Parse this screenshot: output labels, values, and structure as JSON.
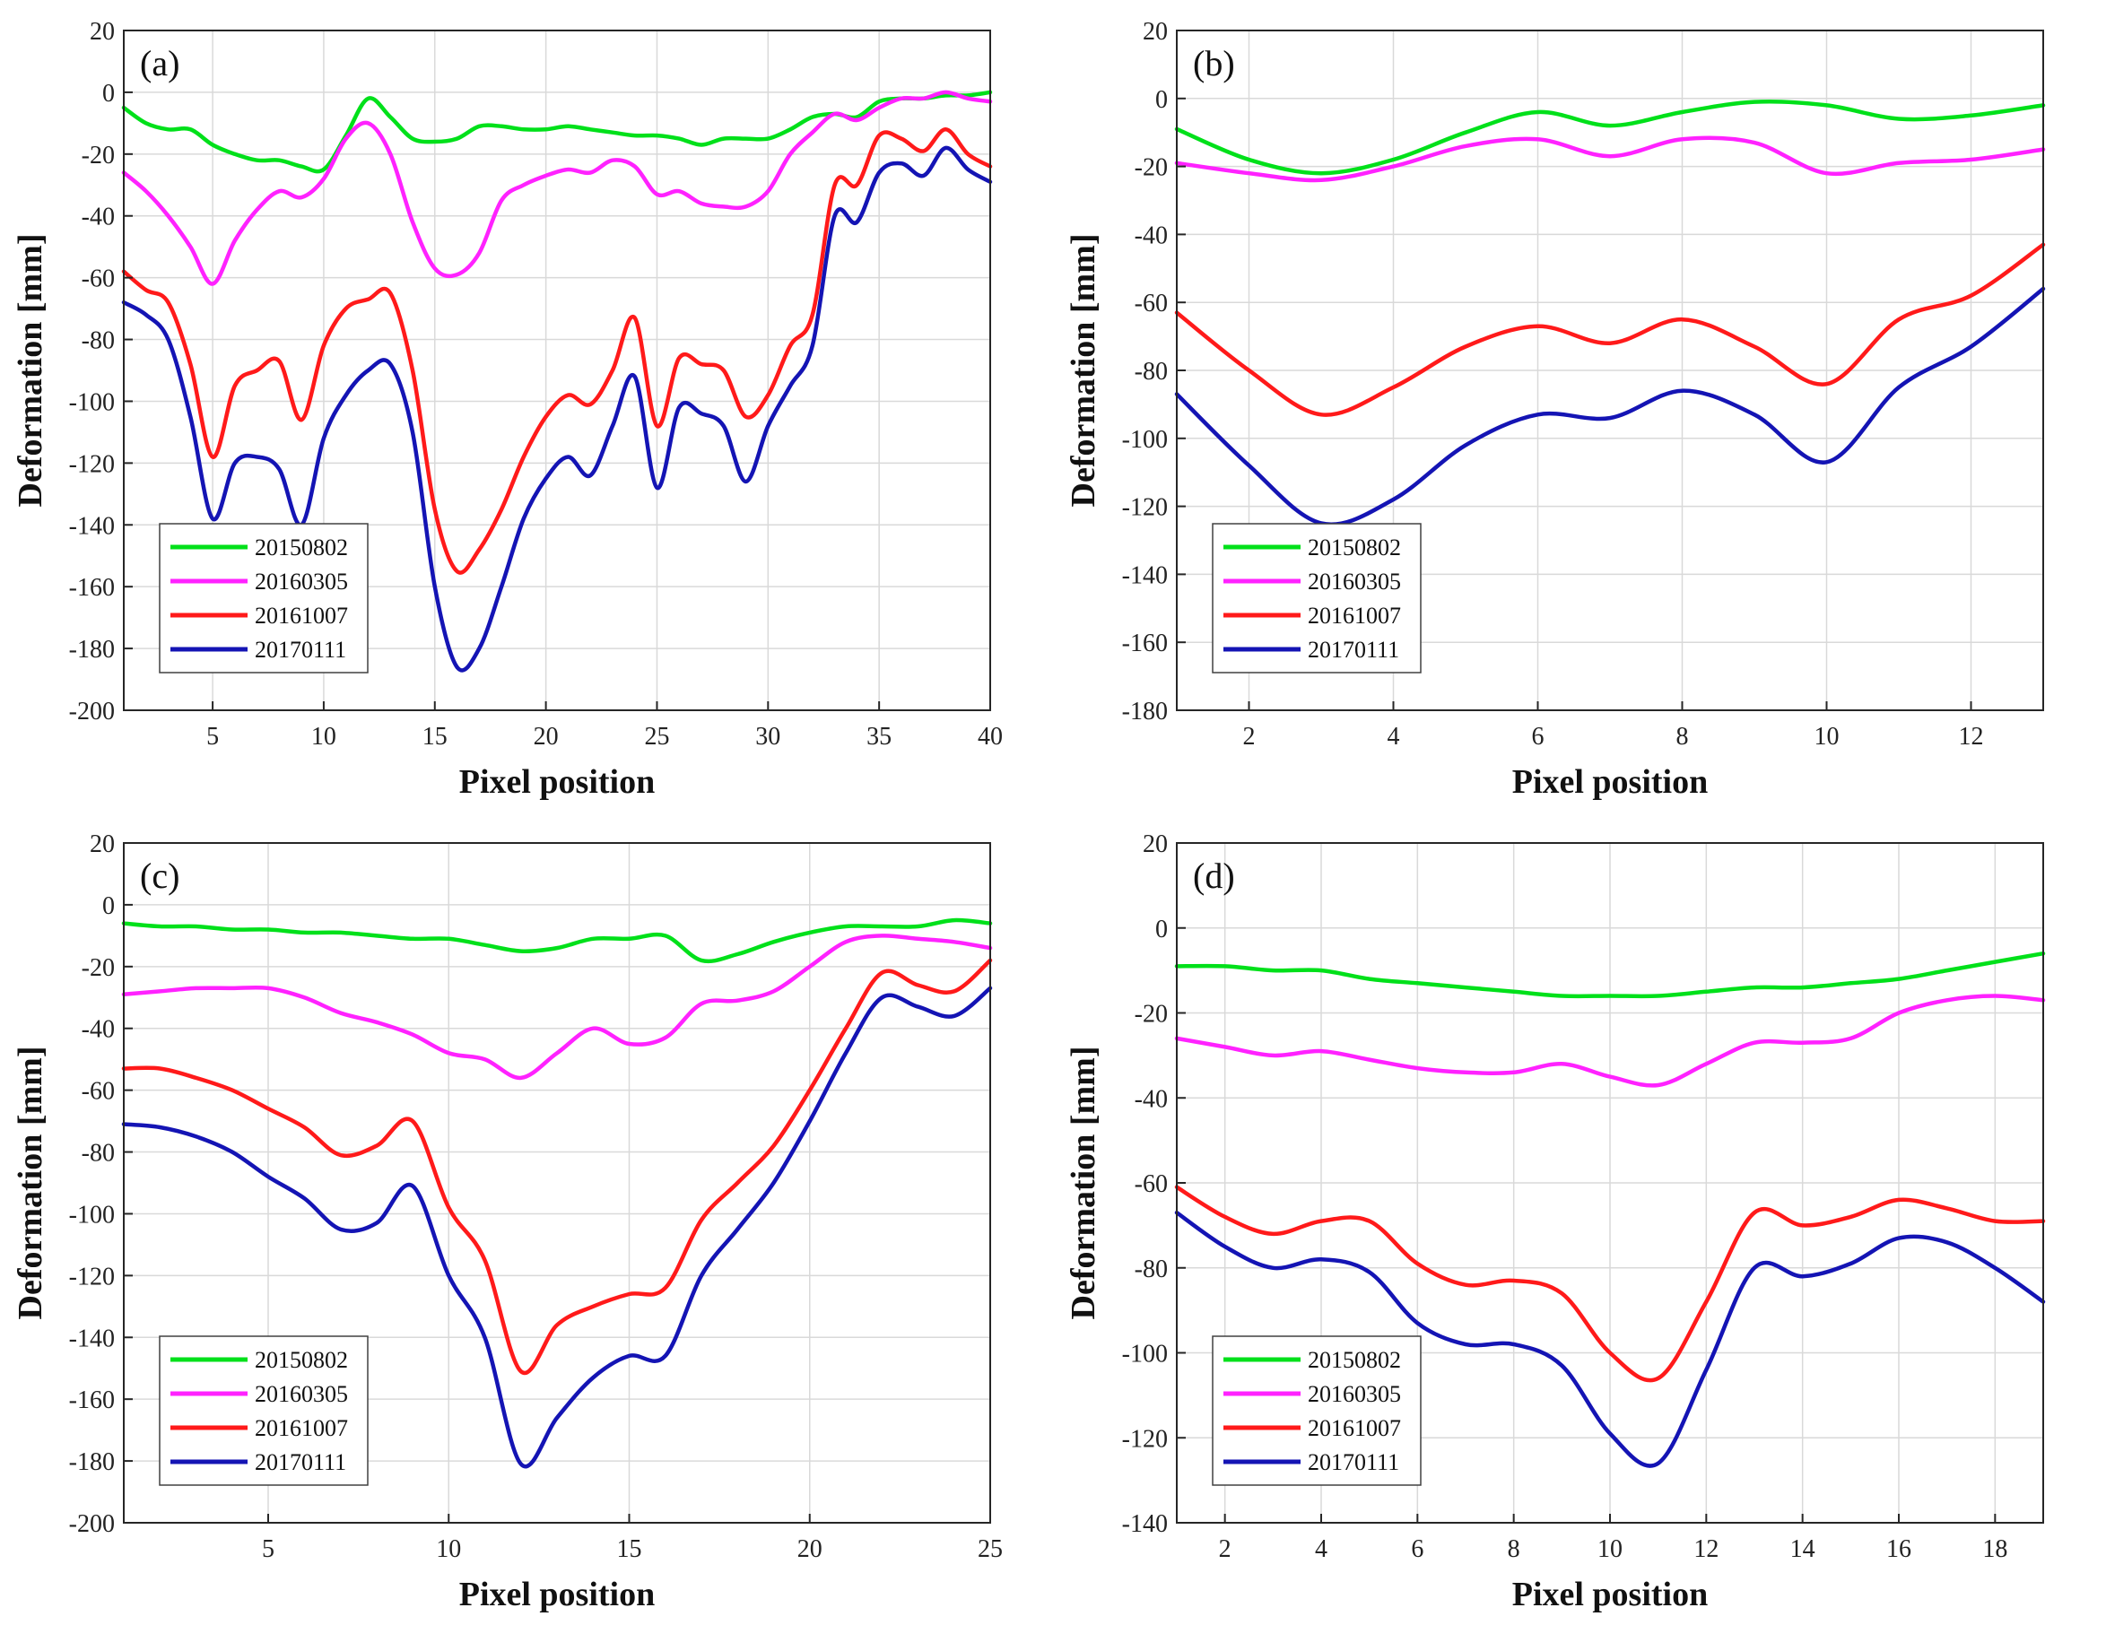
{
  "figure": {
    "background": "#ffffff",
    "grid_color": "#d9d9d9",
    "axis_color": "#262626"
  },
  "series_styles": [
    {
      "name": "20150802",
      "color": "#00e01a"
    },
    {
      "name": "20160305",
      "color": "#ff22ff"
    },
    {
      "name": "20161007",
      "color": "#ff1a1a"
    },
    {
      "name": "20170111",
      "color": "#1414b4"
    }
  ],
  "chart_data": [
    {
      "type": "line",
      "panel": "(a)",
      "xlabel": "Pixel position",
      "ylabel": "Deformation [mm]",
      "xlim": [
        1,
        40
      ],
      "ylim": [
        -200,
        20
      ],
      "xticks": [
        5,
        10,
        15,
        20,
        25,
        30,
        35,
        40
      ],
      "yticks": [
        -200,
        -180,
        -160,
        -140,
        -120,
        -100,
        -80,
        -60,
        -40,
        -20,
        0,
        20
      ],
      "grid": true,
      "legend_position": "bottom-left",
      "series": [
        {
          "name": "20150802",
          "color": "#00e01a",
          "x": [
            1,
            2,
            3,
            4,
            5,
            6,
            7,
            8,
            9,
            10,
            11,
            12,
            13,
            14,
            15,
            16,
            17,
            18,
            19,
            20,
            21,
            22,
            23,
            24,
            25,
            26,
            27,
            28,
            29,
            30,
            31,
            32,
            33,
            34,
            35,
            36,
            37,
            38,
            39,
            40
          ],
          "values": [
            -5,
            -10,
            -12,
            -12,
            -17,
            -20,
            -22,
            -22,
            -24,
            -25,
            -14,
            -2,
            -8,
            -15,
            -16,
            -15,
            -11,
            -11,
            -12,
            -12,
            -11,
            -12,
            -13,
            -14,
            -14,
            -15,
            -17,
            -15,
            -15,
            -15,
            -12,
            -8,
            -7,
            -8,
            -3,
            -2,
            -2,
            -1,
            -1,
            0
          ]
        },
        {
          "name": "20160305",
          "color": "#ff22ff",
          "x": [
            1,
            2,
            3,
            4,
            5,
            6,
            7,
            8,
            9,
            10,
            11,
            12,
            13,
            14,
            15,
            16,
            17,
            18,
            19,
            20,
            21,
            22,
            23,
            24,
            25,
            26,
            27,
            28,
            29,
            30,
            31,
            32,
            33,
            34,
            35,
            36,
            37,
            38,
            39,
            40
          ],
          "values": [
            -26,
            -32,
            -40,
            -50,
            -62,
            -48,
            -38,
            -32,
            -34,
            -28,
            -15,
            -10,
            -20,
            -42,
            -57,
            -59,
            -52,
            -35,
            -30,
            -27,
            -25,
            -26,
            -22,
            -24,
            -33,
            -32,
            -36,
            -37,
            -37,
            -32,
            -20,
            -13,
            -7,
            -9,
            -5,
            -2,
            -2,
            0,
            -2,
            -3
          ]
        },
        {
          "name": "20161007",
          "color": "#ff1a1a",
          "x": [
            1,
            2,
            3,
            4,
            5,
            6,
            7,
            8,
            9,
            10,
            11,
            12,
            13,
            14,
            15,
            16,
            17,
            18,
            19,
            20,
            21,
            22,
            23,
            24,
            25,
            26,
            27,
            28,
            29,
            30,
            31,
            32,
            33,
            34,
            35,
            36,
            37,
            38,
            39,
            40
          ],
          "values": [
            -58,
            -64,
            -68,
            -88,
            -118,
            -95,
            -90,
            -87,
            -106,
            -82,
            -70,
            -67,
            -65,
            -90,
            -135,
            -155,
            -148,
            -135,
            -118,
            -105,
            -98,
            -101,
            -90,
            -73,
            -108,
            -86,
            -88,
            -90,
            -105,
            -98,
            -82,
            -72,
            -30,
            -30,
            -14,
            -15,
            -19,
            -12,
            -20,
            -24
          ]
        },
        {
          "name": "20170111",
          "color": "#1414b4",
          "x": [
            1,
            2,
            3,
            4,
            5,
            6,
            7,
            8,
            9,
            10,
            11,
            12,
            13,
            14,
            15,
            16,
            17,
            18,
            19,
            20,
            21,
            22,
            23,
            24,
            25,
            26,
            27,
            28,
            29,
            30,
            31,
            32,
            33,
            34,
            35,
            36,
            37,
            38,
            39,
            40
          ],
          "values": [
            -68,
            -72,
            -80,
            -105,
            -138,
            -120,
            -118,
            -122,
            -140,
            -112,
            -98,
            -90,
            -88,
            -110,
            -160,
            -186,
            -180,
            -160,
            -138,
            -125,
            -118,
            -124,
            -108,
            -92,
            -128,
            -102,
            -104,
            -108,
            -126,
            -108,
            -95,
            -82,
            -40,
            -42,
            -26,
            -23,
            -27,
            -18,
            -25,
            -29
          ]
        }
      ]
    },
    {
      "type": "line",
      "panel": "(b)",
      "xlabel": "Pixel position",
      "ylabel": "Deformation [mm]",
      "xlim": [
        1,
        13
      ],
      "ylim": [
        -180,
        20
      ],
      "xticks": [
        2,
        4,
        6,
        8,
        10,
        12
      ],
      "yticks": [
        -180,
        -160,
        -140,
        -120,
        -100,
        -80,
        -60,
        -40,
        -20,
        0,
        20
      ],
      "grid": true,
      "legend_position": "bottom-left",
      "series": [
        {
          "name": "20150802",
          "color": "#00e01a",
          "x": [
            1,
            2,
            3,
            4,
            5,
            6,
            7,
            8,
            9,
            10,
            11,
            12,
            13
          ],
          "values": [
            -9,
            -18,
            -22,
            -18,
            -10,
            -4,
            -8,
            -4,
            -1,
            -2,
            -6,
            -5,
            -2
          ]
        },
        {
          "name": "20160305",
          "color": "#ff22ff",
          "x": [
            1,
            2,
            3,
            4,
            5,
            6,
            7,
            8,
            9,
            10,
            11,
            12,
            13
          ],
          "values": [
            -19,
            -22,
            -24,
            -20,
            -14,
            -12,
            -17,
            -12,
            -13,
            -22,
            -19,
            -18,
            -15
          ]
        },
        {
          "name": "20161007",
          "color": "#ff1a1a",
          "x": [
            1,
            2,
            3,
            4,
            5,
            6,
            7,
            8,
            9,
            10,
            11,
            12,
            13
          ],
          "values": [
            -63,
            -80,
            -93,
            -85,
            -73,
            -67,
            -72,
            -65,
            -73,
            -84,
            -65,
            -58,
            -43
          ]
        },
        {
          "name": "20170111",
          "color": "#1414b4",
          "x": [
            1,
            2,
            3,
            4,
            5,
            6,
            7,
            8,
            9,
            10,
            11,
            12,
            13
          ],
          "values": [
            -87,
            -108,
            -125,
            -118,
            -102,
            -93,
            -94,
            -86,
            -93,
            -107,
            -85,
            -73,
            -56
          ]
        }
      ]
    },
    {
      "type": "line",
      "panel": "(c)",
      "xlabel": "Pixel position",
      "ylabel": "Deformation [mm]",
      "xlim": [
        1,
        25
      ],
      "ylim": [
        -200,
        20
      ],
      "xticks": [
        5,
        10,
        15,
        20,
        25
      ],
      "yticks": [
        -200,
        -180,
        -160,
        -140,
        -120,
        -100,
        -80,
        -60,
        -40,
        -20,
        0,
        20
      ],
      "grid": true,
      "legend_position": "bottom-left",
      "series": [
        {
          "name": "20150802",
          "color": "#00e01a",
          "x": [
            1,
            2,
            3,
            4,
            5,
            6,
            7,
            8,
            9,
            10,
            11,
            12,
            13,
            14,
            15,
            16,
            17,
            18,
            19,
            20,
            21,
            22,
            23,
            24,
            25
          ],
          "values": [
            -6,
            -7,
            -7,
            -8,
            -8,
            -9,
            -9,
            -10,
            -11,
            -11,
            -13,
            -15,
            -14,
            -11,
            -11,
            -10,
            -18,
            -16,
            -12,
            -9,
            -7,
            -7,
            -7,
            -5,
            -6
          ]
        },
        {
          "name": "20160305",
          "color": "#ff22ff",
          "x": [
            1,
            2,
            3,
            4,
            5,
            6,
            7,
            8,
            9,
            10,
            11,
            12,
            13,
            14,
            15,
            16,
            17,
            18,
            19,
            20,
            21,
            22,
            23,
            24,
            25
          ],
          "values": [
            -29,
            -28,
            -27,
            -27,
            -27,
            -30,
            -35,
            -38,
            -42,
            -48,
            -50,
            -56,
            -48,
            -40,
            -45,
            -43,
            -32,
            -31,
            -28,
            -20,
            -12,
            -10,
            -11,
            -12,
            -14
          ]
        },
        {
          "name": "20161007",
          "color": "#ff1a1a",
          "x": [
            1,
            2,
            3,
            4,
            5,
            6,
            7,
            8,
            9,
            10,
            11,
            12,
            13,
            14,
            15,
            16,
            17,
            18,
            19,
            20,
            21,
            22,
            23,
            24,
            25
          ],
          "values": [
            -53,
            -53,
            -56,
            -60,
            -66,
            -72,
            -81,
            -78,
            -70,
            -98,
            -115,
            -151,
            -136,
            -130,
            -126,
            -124,
            -102,
            -90,
            -78,
            -60,
            -40,
            -22,
            -26,
            -28,
            -18
          ]
        },
        {
          "name": "20170111",
          "color": "#1414b4",
          "x": [
            1,
            2,
            3,
            4,
            5,
            6,
            7,
            8,
            9,
            10,
            11,
            12,
            13,
            14,
            15,
            16,
            17,
            18,
            19,
            20,
            21,
            22,
            23,
            24,
            25
          ],
          "values": [
            -71,
            -72,
            -75,
            -80,
            -88,
            -95,
            -105,
            -103,
            -91,
            -120,
            -140,
            -181,
            -166,
            -153,
            -146,
            -146,
            -120,
            -105,
            -90,
            -70,
            -48,
            -30,
            -33,
            -36,
            -27
          ]
        }
      ]
    },
    {
      "type": "line",
      "panel": "(d)",
      "xlabel": "Pixel position",
      "ylabel": "Deformation [mm]",
      "xlim": [
        1,
        19
      ],
      "ylim": [
        -140,
        20
      ],
      "xticks": [
        2,
        4,
        6,
        8,
        10,
        12,
        14,
        16,
        18
      ],
      "yticks": [
        -140,
        -120,
        -100,
        -80,
        -60,
        -40,
        -20,
        0,
        20
      ],
      "grid": true,
      "legend_position": "bottom-left",
      "series": [
        {
          "name": "20150802",
          "color": "#00e01a",
          "x": [
            1,
            2,
            3,
            4,
            5,
            6,
            7,
            8,
            9,
            10,
            11,
            12,
            13,
            14,
            15,
            16,
            17,
            18,
            19
          ],
          "values": [
            -9,
            -9,
            -10,
            -10,
            -12,
            -13,
            -14,
            -15,
            -16,
            -16,
            -16,
            -15,
            -14,
            -14,
            -13,
            -12,
            -10,
            -8,
            -6
          ]
        },
        {
          "name": "20160305",
          "color": "#ff22ff",
          "x": [
            1,
            2,
            3,
            4,
            5,
            6,
            7,
            8,
            9,
            10,
            11,
            12,
            13,
            14,
            15,
            16,
            17,
            18,
            19
          ],
          "values": [
            -26,
            -28,
            -30,
            -29,
            -31,
            -33,
            -34,
            -34,
            -32,
            -35,
            -37,
            -32,
            -27,
            -27,
            -26,
            -20,
            -17,
            -16,
            -17
          ]
        },
        {
          "name": "20161007",
          "color": "#ff1a1a",
          "x": [
            1,
            2,
            3,
            4,
            5,
            6,
            7,
            8,
            9,
            10,
            11,
            12,
            13,
            14,
            15,
            16,
            17,
            18,
            19
          ],
          "values": [
            -61,
            -68,
            -72,
            -69,
            -69,
            -79,
            -84,
            -83,
            -86,
            -100,
            -106,
            -88,
            -67,
            -70,
            -68,
            -64,
            -66,
            -69,
            -69
          ]
        },
        {
          "name": "20170111",
          "color": "#1414b4",
          "x": [
            1,
            2,
            3,
            4,
            5,
            6,
            7,
            8,
            9,
            10,
            11,
            12,
            13,
            14,
            15,
            16,
            17,
            18,
            19
          ],
          "values": [
            -67,
            -75,
            -80,
            -78,
            -81,
            -93,
            -98,
            -98,
            -103,
            -119,
            -126,
            -104,
            -80,
            -82,
            -79,
            -73,
            -74,
            -80,
            -88
          ]
        }
      ]
    }
  ]
}
